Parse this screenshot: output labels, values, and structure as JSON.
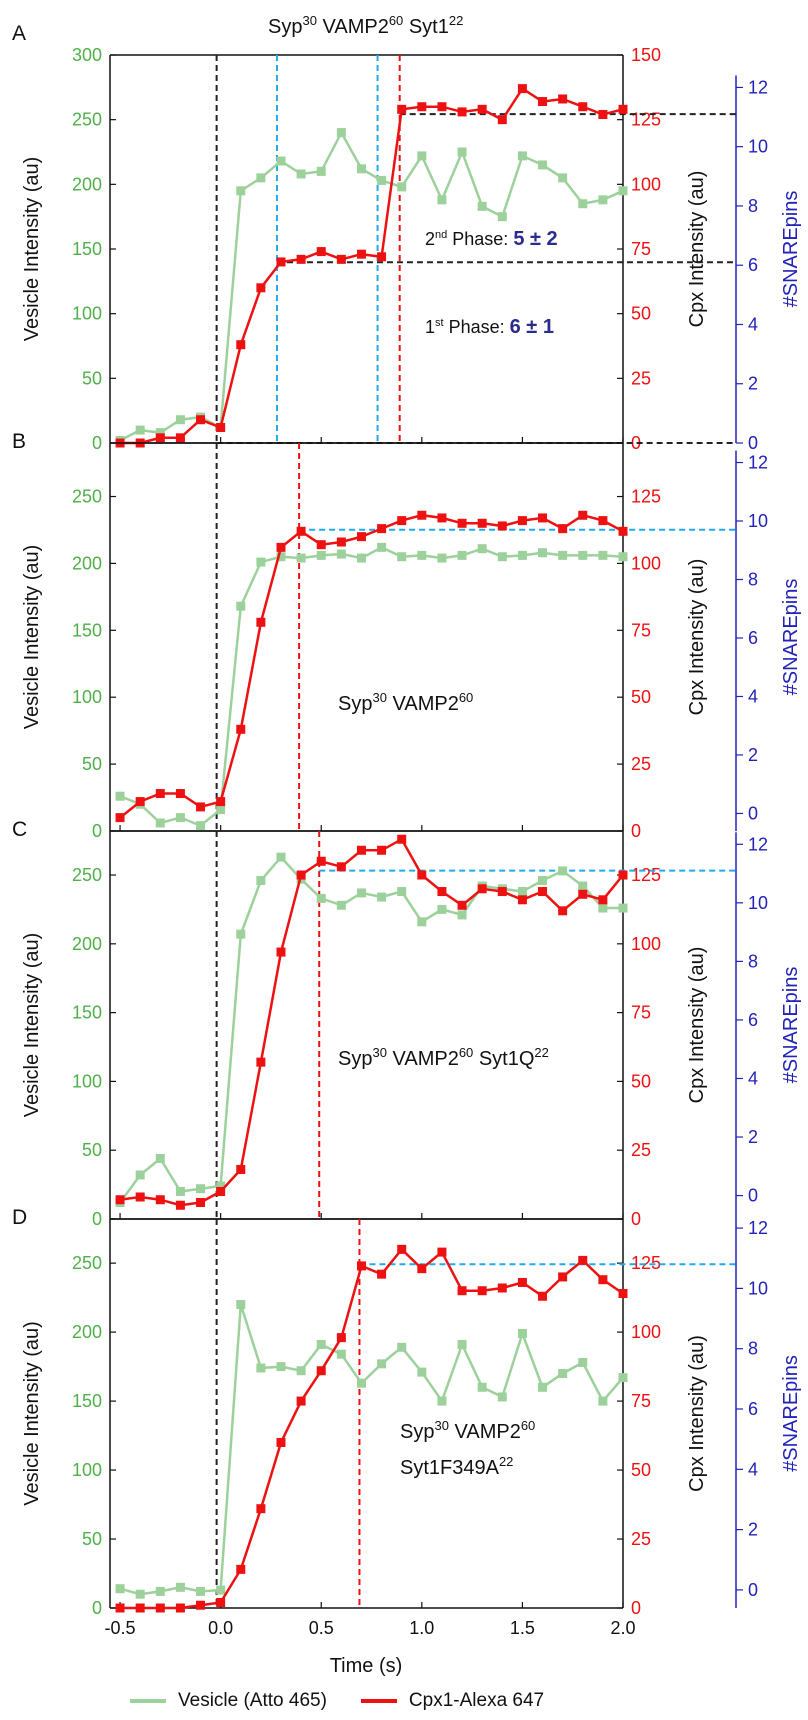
{
  "figure_title": {
    "main": "Syp",
    "s1": "30",
    "m2": " VAMP2",
    "s2": "60",
    "m3": " Syt1",
    "s3": "22"
  },
  "colors": {
    "vesicle": "#9dd19b",
    "cpx": "#ee1111",
    "snare_axis": "#2222bb",
    "vesicle_axis": "#4fb04a",
    "black_dash": "#222222",
    "cyan_dash": "#22aaee"
  },
  "legend": [
    {
      "label": "Vesicle (Atto 465)",
      "color": "#9dd19b"
    },
    {
      "label": "Cpx1-Alexa 647",
      "color": "#ee1111"
    }
  ],
  "axes": {
    "xlabel": "Time (s)",
    "xticks": [
      "-0.5",
      "0.0",
      "0.5",
      "1.0",
      "1.5",
      "2.0"
    ],
    "left_label": "Vesicle Intensity (au)",
    "right_label": "Cpx Intensity (au)",
    "snare_label": "#SNAREpins"
  },
  "chart_data": [
    {
      "type": "line",
      "panel": "A",
      "xlim": [
        -0.55,
        2.0
      ],
      "vesicle_ylim": [
        0,
        300
      ],
      "vesicle_ticks": [
        "0",
        "50",
        "100",
        "150",
        "200",
        "250",
        "300"
      ],
      "cpx_ylim": [
        0,
        150
      ],
      "cpx_ticks": [
        "0",
        "25",
        "50",
        "75",
        "100",
        "125",
        "150"
      ],
      "snare_ticks": [
        "0",
        "2",
        "4",
        "6",
        "8",
        "10",
        "12"
      ],
      "snare_at_zero_cpx": 0,
      "snare_per_cpx": 0.0873,
      "x": [
        -0.5,
        -0.4,
        -0.3,
        -0.2,
        -0.1,
        0.0,
        0.1,
        0.2,
        0.3,
        0.4,
        0.5,
        0.6,
        0.7,
        0.8,
        0.9,
        1.0,
        1.1,
        1.2,
        1.3,
        1.4,
        1.5,
        1.6,
        1.7,
        1.8,
        1.9,
        2.0
      ],
      "series": [
        {
          "name": "Vesicle (Atto 465)",
          "axis": "vesicle",
          "values": [
            2,
            10,
            8,
            18,
            20,
            12,
            195,
            205,
            218,
            208,
            210,
            240,
            212,
            203,
            198,
            222,
            188,
            225,
            183,
            175,
            222,
            215,
            205,
            185,
            188,
            195
          ]
        },
        {
          "name": "Cpx1-Alexa 647",
          "axis": "cpx",
          "values": [
            0,
            0,
            2,
            2,
            9,
            6,
            38,
            60,
            70,
            71,
            74,
            71,
            73,
            72,
            129,
            130,
            130,
            128,
            129,
            125,
            137,
            132,
            133,
            130,
            127,
            129
          ]
        }
      ],
      "vlines": [
        {
          "x": -0.02,
          "color": "black_dash"
        },
        {
          "x": 0.28,
          "color": "cyan_dash"
        },
        {
          "x": 0.78,
          "color": "cyan_dash"
        },
        {
          "x": 0.89,
          "color": "cpx"
        }
      ],
      "hlines": [
        {
          "snare": 0,
          "from_x": -0.02,
          "color": "black_dash"
        },
        {
          "snare": 6.1,
          "from_x": 0.28,
          "color": "black_dash"
        },
        {
          "snare": 11.1,
          "from_x": 0.89,
          "color": "black_dash"
        }
      ],
      "annotations": [
        {
          "id": "p2",
          "pre": "2",
          "sup": "nd",
          "mid": " Phase: ",
          "bold": "5 ± 2"
        },
        {
          "id": "p1",
          "pre": "1",
          "sup": "st",
          "mid": " Phase: ",
          "bold": "6 ± 1"
        }
      ]
    },
    {
      "type": "line",
      "panel": "B",
      "xlim": [
        -0.55,
        2.0
      ],
      "vesicle_ylim": [
        0,
        290
      ],
      "vesicle_ticks": [
        "0",
        "50",
        "100",
        "150",
        "200",
        "250"
      ],
      "cpx_ylim": [
        0,
        145
      ],
      "cpx_ticks": [
        "0",
        "25",
        "50",
        "75",
        "100",
        "125"
      ],
      "snare_ticks": [
        "0",
        "2",
        "4",
        "6",
        "8",
        "10",
        "12"
      ],
      "snare_at_zero_cpx": -0.6,
      "snare_per_cpx": 0.0915,
      "x": [
        -0.5,
        -0.4,
        -0.3,
        -0.2,
        -0.1,
        0.0,
        0.1,
        0.2,
        0.3,
        0.4,
        0.5,
        0.6,
        0.7,
        0.8,
        0.9,
        1.0,
        1.1,
        1.2,
        1.3,
        1.4,
        1.5,
        1.6,
        1.7,
        1.8,
        1.9,
        2.0
      ],
      "series": [
        {
          "name": "Vesicle (Atto 465)",
          "axis": "vesicle",
          "values": [
            26,
            20,
            6,
            10,
            4,
            16,
            168,
            201,
            205,
            204,
            206,
            207,
            204,
            212,
            205,
            206,
            204,
            206,
            211,
            205,
            206,
            208,
            206,
            206,
            206,
            205
          ]
        },
        {
          "name": "Cpx1-Alexa 647",
          "axis": "cpx",
          "values": [
            5,
            11,
            14,
            14,
            9,
            11,
            38,
            78,
            106,
            112,
            107,
            108,
            110,
            113,
            116,
            118,
            117,
            115,
            115,
            114,
            116,
            117,
            113,
            118,
            116,
            112
          ]
        }
      ],
      "vlines": [
        {
          "x": -0.02,
          "color": "black_dash"
        },
        {
          "x": 0.39,
          "color": "cpx"
        }
      ],
      "hlines": [
        {
          "snare": 9.7,
          "from_x": 0.39,
          "color": "cyan_dash"
        }
      ],
      "label": {
        "a": "Syp",
        "s1": "30",
        "b": " VAMP2",
        "s2": "60"
      }
    },
    {
      "type": "line",
      "panel": "C",
      "xlim": [
        -0.55,
        2.0
      ],
      "vesicle_ylim": [
        0,
        282
      ],
      "vesicle_ticks": [
        "0",
        "50",
        "100",
        "150",
        "200",
        "250"
      ],
      "cpx_ylim": [
        0,
        141
      ],
      "cpx_ticks": [
        "0",
        "25",
        "50",
        "75",
        "100",
        "125"
      ],
      "snare_ticks": [
        "0",
        "2",
        "4",
        "6",
        "8",
        "10",
        "12"
      ],
      "snare_at_zero_cpx": -0.8,
      "snare_per_cpx": 0.094,
      "x": [
        -0.5,
        -0.4,
        -0.3,
        -0.2,
        -0.1,
        0.0,
        0.1,
        0.2,
        0.3,
        0.4,
        0.5,
        0.6,
        0.7,
        0.8,
        0.9,
        1.0,
        1.1,
        1.2,
        1.3,
        1.4,
        1.5,
        1.6,
        1.7,
        1.8,
        1.9,
        2.0
      ],
      "series": [
        {
          "name": "Vesicle (Atto 465)",
          "axis": "vesicle",
          "values": [
            12,
            32,
            44,
            20,
            22,
            24,
            207,
            246,
            263,
            247,
            233,
            228,
            237,
            234,
            238,
            216,
            225,
            221,
            242,
            240,
            238,
            246,
            253,
            242,
            226,
            226
          ]
        },
        {
          "name": "Cpx1-Alexa 647",
          "axis": "cpx",
          "values": [
            7,
            8,
            7,
            5,
            6,
            10,
            18,
            57,
            97,
            125,
            130,
            128,
            134,
            134,
            138,
            125,
            119,
            114,
            120,
            119,
            116,
            119,
            112,
            118,
            116,
            125
          ]
        }
      ],
      "vlines": [
        {
          "x": -0.02,
          "color": "black_dash"
        },
        {
          "x": 0.49,
          "color": "cpx"
        }
      ],
      "hlines": [
        {
          "snare": 11.1,
          "from_x": 0.49,
          "color": "cyan_dash"
        }
      ],
      "label": {
        "a": "Syp",
        "s1": "30",
        "b": " VAMP2",
        "s2": "60",
        "c": " Syt1Q",
        "s3": "22"
      }
    },
    {
      "type": "line",
      "panel": "D",
      "xlim": [
        -0.55,
        2.0
      ],
      "vesicle_ylim": [
        0,
        282
      ],
      "vesicle_ticks": [
        "0",
        "50",
        "100",
        "150",
        "200",
        "250"
      ],
      "cpx_ylim": [
        0,
        141
      ],
      "cpx_ticks": [
        "0",
        "25",
        "50",
        "75",
        "100",
        "125"
      ],
      "snare_ticks": [
        "0",
        "2",
        "4",
        "6",
        "8",
        "10",
        "12"
      ],
      "snare_at_zero_cpx": -0.6,
      "snare_per_cpx": 0.0915,
      "x": [
        -0.5,
        -0.4,
        -0.3,
        -0.2,
        -0.1,
        0.0,
        0.1,
        0.2,
        0.3,
        0.4,
        0.5,
        0.6,
        0.7,
        0.8,
        0.9,
        1.0,
        1.1,
        1.2,
        1.3,
        1.4,
        1.5,
        1.6,
        1.7,
        1.8,
        1.9,
        2.0
      ],
      "series": [
        {
          "name": "Vesicle (Atto 465)",
          "axis": "vesicle",
          "values": [
            14,
            10,
            12,
            15,
            12,
            13,
            220,
            174,
            175,
            172,
            191,
            184,
            163,
            177,
            189,
            171,
            150,
            191,
            160,
            153,
            199,
            160,
            170,
            178,
            150,
            167
          ]
        },
        {
          "name": "Cpx1-Alexa 647",
          "axis": "cpx",
          "values": [
            0,
            0,
            0,
            0,
            1,
            2,
            14,
            36,
            60,
            75,
            86,
            98,
            124,
            121,
            130,
            123,
            129,
            115,
            115,
            116,
            118,
            113,
            120,
            126,
            119,
            114
          ]
        }
      ],
      "vlines": [
        {
          "x": -0.02,
          "color": "black_dash"
        },
        {
          "x": 0.69,
          "color": "cpx"
        }
      ],
      "hlines": [
        {
          "snare": 10.8,
          "from_x": 0.69,
          "color": "cyan_dash"
        }
      ],
      "label": {
        "a": "Syp",
        "s1": "30",
        "b": " VAMP2",
        "s2": "60",
        "c": "Syt1F349A",
        "s3": "22"
      }
    }
  ]
}
